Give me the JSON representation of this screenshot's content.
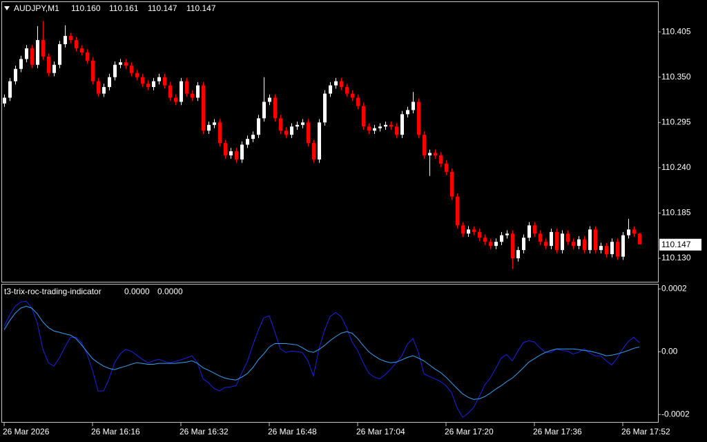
{
  "chart_data": [
    {
      "type": "candlestick",
      "title": "AUDJPY,M1",
      "last_bar_labels": [
        "110.160",
        "110.161",
        "110.147",
        "110.147"
      ],
      "categories": [
        "26 Mar 2026",
        null,
        null,
        null,
        null,
        null,
        null,
        null,
        null,
        null,
        null,
        null,
        null,
        null,
        null,
        null,
        "26 Mar 16:16",
        null,
        null,
        null,
        null,
        null,
        null,
        null,
        null,
        null,
        null,
        null,
        null,
        null,
        null,
        null,
        "26 Mar 16:32",
        null,
        null,
        null,
        null,
        null,
        null,
        null,
        null,
        null,
        null,
        null,
        null,
        null,
        null,
        null,
        "26 Mar 16:48",
        null,
        null,
        null,
        null,
        null,
        null,
        null,
        null,
        null,
        null,
        null,
        null,
        null,
        null,
        null,
        "26 Mar 17:04",
        null,
        null,
        null,
        null,
        null,
        null,
        null,
        null,
        null,
        null,
        null,
        null,
        null,
        null,
        null,
        "26 Mar 17:20",
        null,
        null,
        null,
        null,
        null,
        null,
        null,
        null,
        null,
        null,
        null,
        null,
        null,
        null,
        null,
        "26 Mar 17:36",
        null,
        null,
        null,
        null,
        null,
        null,
        null,
        null,
        null,
        null,
        null,
        null,
        null,
        null,
        null,
        "26 Mar 17:52",
        null,
        null,
        null
      ],
      "open": [
        110.318,
        110.325,
        110.345,
        110.36,
        110.372,
        110.385,
        110.365,
        110.395,
        110.375,
        110.355,
        110.365,
        110.39,
        110.4,
        110.395,
        110.385,
        110.38,
        110.37,
        110.345,
        110.33,
        110.338,
        110.35,
        110.365,
        110.368,
        110.364,
        110.355,
        110.35,
        110.342,
        110.338,
        110.345,
        110.35,
        110.34,
        110.325,
        110.32,
        110.345,
        110.33,
        110.325,
        110.34,
        110.285,
        110.292,
        110.295,
        110.27,
        110.255,
        110.26,
        110.25,
        110.268,
        110.275,
        110.28,
        110.3,
        110.32,
        110.325,
        110.3,
        110.285,
        110.28,
        110.29,
        110.292,
        110.295,
        110.27,
        110.25,
        110.295,
        110.33,
        110.34,
        110.345,
        110.338,
        110.33,
        110.325,
        110.315,
        110.29,
        110.285,
        110.288,
        110.29,
        110.292,
        110.29,
        110.28,
        110.305,
        110.31,
        110.32,
        110.28,
        110.255,
        110.258,
        110.255,
        110.245,
        110.235,
        110.205,
        110.17,
        110.16,
        110.165,
        110.162,
        110.155,
        110.15,
        110.145,
        110.15,
        110.158,
        110.16,
        110.13,
        110.14,
        110.155,
        110.17,
        110.16,
        110.15,
        110.145,
        110.162,
        110.14,
        110.16,
        110.15,
        110.145,
        110.153,
        110.14,
        110.165,
        110.14,
        110.145,
        110.135,
        110.15,
        110.132,
        110.158,
        110.165,
        110.16
      ],
      "high": [
        110.329,
        110.349,
        110.364,
        110.376,
        110.389,
        110.389,
        110.412,
        110.418,
        110.379,
        110.369,
        110.394,
        110.413,
        110.404,
        110.399,
        110.389,
        110.384,
        110.374,
        110.349,
        110.342,
        110.354,
        110.369,
        110.372,
        110.372,
        110.368,
        110.359,
        110.354,
        110.346,
        110.349,
        110.354,
        110.354,
        110.344,
        110.329,
        110.349,
        110.349,
        110.334,
        110.344,
        110.344,
        110.296,
        110.299,
        110.299,
        110.274,
        110.264,
        110.264,
        110.272,
        110.279,
        110.284,
        110.304,
        110.35,
        110.329,
        110.329,
        110.304,
        110.289,
        110.294,
        110.296,
        110.299,
        110.299,
        110.274,
        110.299,
        110.334,
        110.344,
        110.349,
        110.349,
        110.342,
        110.334,
        110.329,
        110.319,
        110.294,
        110.292,
        110.294,
        110.296,
        110.296,
        110.294,
        110.309,
        110.314,
        110.332,
        110.324,
        110.284,
        110.262,
        110.262,
        110.259,
        110.249,
        110.239,
        110.209,
        110.174,
        110.169,
        110.169,
        110.166,
        110.159,
        110.154,
        110.154,
        110.162,
        110.164,
        110.164,
        110.144,
        110.159,
        110.174,
        110.174,
        110.164,
        110.154,
        110.166,
        110.166,
        110.164,
        110.164,
        110.154,
        110.157,
        110.157,
        110.169,
        110.169,
        110.149,
        110.149,
        110.154,
        110.154,
        110.162,
        110.178,
        110.169,
        110.161
      ],
      "low": [
        110.314,
        110.321,
        110.341,
        110.356,
        110.368,
        110.361,
        110.361,
        110.371,
        110.351,
        110.351,
        110.361,
        110.386,
        110.391,
        110.381,
        110.376,
        110.366,
        110.341,
        110.326,
        110.326,
        110.334,
        110.346,
        110.361,
        110.36,
        110.351,
        110.346,
        110.338,
        110.334,
        110.334,
        110.341,
        110.336,
        110.321,
        110.316,
        110.316,
        110.326,
        110.321,
        110.321,
        110.281,
        110.281,
        110.288,
        110.266,
        110.251,
        110.251,
        110.246,
        110.246,
        110.264,
        110.271,
        110.276,
        110.296,
        110.316,
        110.296,
        110.281,
        110.276,
        110.276,
        110.286,
        110.288,
        110.266,
        110.246,
        110.246,
        110.291,
        110.326,
        110.336,
        110.334,
        110.326,
        110.321,
        110.311,
        110.286,
        110.281,
        110.281,
        110.284,
        110.286,
        110.286,
        110.276,
        110.276,
        110.301,
        110.306,
        110.276,
        110.251,
        110.23,
        110.251,
        110.241,
        110.231,
        110.201,
        110.166,
        110.156,
        110.156,
        110.158,
        110.151,
        110.146,
        110.141,
        110.141,
        110.146,
        110.154,
        110.117,
        110.126,
        110.136,
        110.151,
        110.156,
        110.146,
        110.141,
        110.141,
        110.136,
        110.136,
        110.146,
        110.141,
        110.141,
        110.136,
        110.136,
        110.136,
        110.136,
        110.131,
        110.131,
        110.128,
        110.128,
        110.154,
        110.156,
        110.147
      ],
      "close": [
        110.325,
        110.345,
        110.36,
        110.372,
        110.385,
        110.365,
        110.395,
        110.375,
        110.355,
        110.365,
        110.39,
        110.4,
        110.395,
        110.385,
        110.38,
        110.37,
        110.345,
        110.33,
        110.338,
        110.35,
        110.365,
        110.368,
        110.364,
        110.355,
        110.35,
        110.342,
        110.338,
        110.345,
        110.35,
        110.34,
        110.325,
        110.32,
        110.345,
        110.33,
        110.325,
        110.34,
        110.285,
        110.292,
        110.295,
        110.27,
        110.255,
        110.26,
        110.25,
        110.268,
        110.275,
        110.28,
        110.3,
        110.32,
        110.325,
        110.3,
        110.285,
        110.28,
        110.29,
        110.292,
        110.295,
        110.27,
        110.25,
        110.295,
        110.33,
        110.34,
        110.345,
        110.338,
        110.33,
        110.325,
        110.315,
        110.29,
        110.285,
        110.288,
        110.29,
        110.292,
        110.29,
        110.28,
        110.305,
        110.31,
        110.32,
        110.28,
        110.255,
        110.258,
        110.255,
        110.245,
        110.235,
        110.205,
        110.17,
        110.16,
        110.165,
        110.162,
        110.155,
        110.15,
        110.145,
        110.15,
        110.158,
        110.16,
        110.13,
        110.14,
        110.155,
        110.17,
        110.16,
        110.15,
        110.145,
        110.162,
        110.14,
        110.16,
        110.15,
        110.145,
        110.153,
        110.14,
        110.165,
        110.14,
        110.145,
        110.135,
        110.15,
        110.132,
        110.158,
        110.165,
        110.16,
        110.147
      ],
      "up_color": "#ffffff",
      "down_color": "#ff0000",
      "ylim": [
        110.1015,
        110.442
      ],
      "yticks": [
        110.405,
        {
          "value": 110.35,
          "label": "110.350"
        },
        110.295,
        {
          "value": 110.24,
          "label": "110.240"
        },
        110.185,
        {
          "value": 110.13,
          "label": "110.130"
        }
      ]
    },
    {
      "type": "line",
      "title": "t3-trix-roc-trading-indicator",
      "series": [
        {
          "color": "#1e22e6",
          "last_value_label": "0.0000",
          "values": [
            8.1e-05,
            0.000117,
            0.000145,
            0.000158,
            0.000161,
            0.000139,
            9.2e-05,
            9e-06,
            -3.5e-05,
            -4.6e-05,
            -2e-05,
            1.5e-05,
            4.6e-05,
            4.6e-05,
            2.9e-05,
            -7e-06,
            -5.9e-05,
            -0.000125,
            -0.000125,
            -8.6e-05,
            -3.5e-05,
            -7e-06,
            7e-06,
            2e-06,
            -1.1e-05,
            -2.4e-05,
            -3.5e-05,
            -2.9e-05,
            -2.4e-05,
            -3.1e-05,
            -3.5e-05,
            -3.1e-05,
            -2.6e-05,
            -2e-05,
            -1.3e-05,
            -3.5e-05,
            -8.6e-05,
            -9.9e-05,
            -0.000117,
            -0.000125,
            -0.000114,
            -0.000112,
            -0.000108,
            -6.8e-05,
            -3.3e-05,
            2e-05,
            6.8e-05,
            0.000108,
            0.000114,
            6.4e-05,
            9e-06,
            -2e-06,
            2e-06,
            0,
            -2e-06,
            -2.9e-05,
            -7.7e-05,
            9e-06,
            6.8e-05,
            0.000112,
            0.000125,
            0.000112,
            7.7e-05,
            3.1e-05,
            4e-06,
            -3.5e-05,
            -6.8e-05,
            -8.1e-05,
            -8.6e-05,
            -7.3e-05,
            -5.5e-05,
            -3.5e-05,
            -1.3e-05,
            2.4e-05,
            4.2e-05,
            -2e-06,
            -7e-05,
            -7.9e-05,
            -8.6e-05,
            -9.5e-05,
            -0.000108,
            -0.00013,
            -0.000178,
            -0.000209,
            -0.000196,
            -0.000178,
            -0.000143,
            -0.000106,
            -8.4e-05,
            -5.3e-05,
            -2e-05,
            -9e-06,
            -2.9e-05,
            2e-06,
            2.9e-05,
            3.5e-05,
            3.1e-05,
            1.3e-05,
            -2e-06,
            -2e-06,
            9e-06,
            4e-06,
            2e-06,
            -7e-06,
            -2e-06,
            9e-06,
            -4e-06,
            -1.3e-05,
            -1.3e-05,
            -2.9e-05,
            -4.2e-05,
            -2e-05,
            9e-06,
            3.3e-05,
            4.6e-05,
            2.9e-05
          ]
        },
        {
          "color": "#3aa0f0",
          "last_value_label": "0.0000",
          "values": [
            7e-05,
            9.9e-05,
            0.000123,
            0.000139,
            0.000145,
            0.000139,
            0.000121,
            9.5e-05,
            7.7e-05,
            6.6e-05,
            6.2e-05,
            5.7e-05,
            5.3e-05,
            4.2e-05,
            2.2e-05,
            0,
            -2.2e-05,
            -3.5e-05,
            -4.6e-05,
            -5.3e-05,
            -5.7e-05,
            -5.1e-05,
            -4.6e-05,
            -4e-05,
            -3.5e-05,
            -3.7e-05,
            -4e-05,
            -4e-05,
            -3.7e-05,
            -3.7e-05,
            -3.7e-05,
            -3.7e-05,
            -3.5e-05,
            -3.3e-05,
            -2.9e-05,
            -3.7e-05,
            -5.1e-05,
            -5.9e-05,
            -6.8e-05,
            -7.7e-05,
            -8.4e-05,
            -8.8e-05,
            -9e-05,
            -8.1e-05,
            -7e-05,
            -5.1e-05,
            -2.6e-05,
            -7e-06,
            1.5e-05,
            2.6e-05,
            2.6e-05,
            2.6e-05,
            2.4e-05,
            2.2e-05,
            1.3e-05,
            2e-06,
            -2e-06,
            7e-06,
            2e-05,
            3.5e-05,
            4.8e-05,
            5.9e-05,
            6.4e-05,
            5.9e-05,
            4.2e-05,
            2e-05,
            0,
            -1.3e-05,
            -2.4e-05,
            -3.1e-05,
            -3.5e-05,
            -3.3e-05,
            -2.6e-05,
            -1.8e-05,
            -1.3e-05,
            -2e-05,
            -2.9e-05,
            -4.2e-05,
            -5.5e-05,
            -6.6e-05,
            -8.1e-05,
            -9.9e-05,
            -0.000117,
            -0.000134,
            -0.000145,
            -0.000152,
            -0.00015,
            -0.000143,
            -0.000132,
            -0.000119,
            -0.000108,
            -9.5e-05,
            -8.4e-05,
            -6.8e-05,
            -5.1e-05,
            -3.3e-05,
            -2.2e-05,
            -1.1e-05,
            -2e-06,
            4e-06,
            9e-06,
            9e-06,
            9e-06,
            9e-06,
            7e-06,
            4e-06,
            2e-06,
            -2e-06,
            -7e-06,
            -1.3e-05,
            -1.1e-05,
            -7e-06,
            -2e-06,
            4e-06,
            1.1e-05,
            1.5e-05
          ]
        }
      ],
      "ylim": [
        -0.000226,
        0.000214
      ],
      "yticks": [
        0.0002,
        {
          "value": 0,
          "label": "0.00"
        },
        -0.0002
      ]
    }
  ]
}
